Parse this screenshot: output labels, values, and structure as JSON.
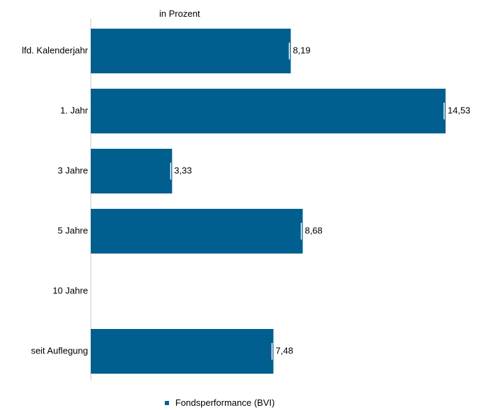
{
  "chart_data": {
    "type": "bar",
    "orientation": "horizontal",
    "unit_label": "in Prozent",
    "categories": [
      "lfd. Kalenderjahr",
      "1. Jahr",
      "3  Jahre",
      "5 Jahre",
      "10 Jahre",
      "seit Auflegung"
    ],
    "series": [
      {
        "name": "Fondsperformance (BVI)",
        "color": "#005f8f",
        "values": [
          8.19,
          14.53,
          3.33,
          8.68,
          null,
          7.48
        ],
        "labels": [
          "8,19",
          "14,53",
          "3,33",
          "8,68",
          "",
          "7,48"
        ]
      }
    ],
    "xlim": [
      0,
      14.53
    ],
    "grid": false,
    "legend_position": "bottom"
  }
}
